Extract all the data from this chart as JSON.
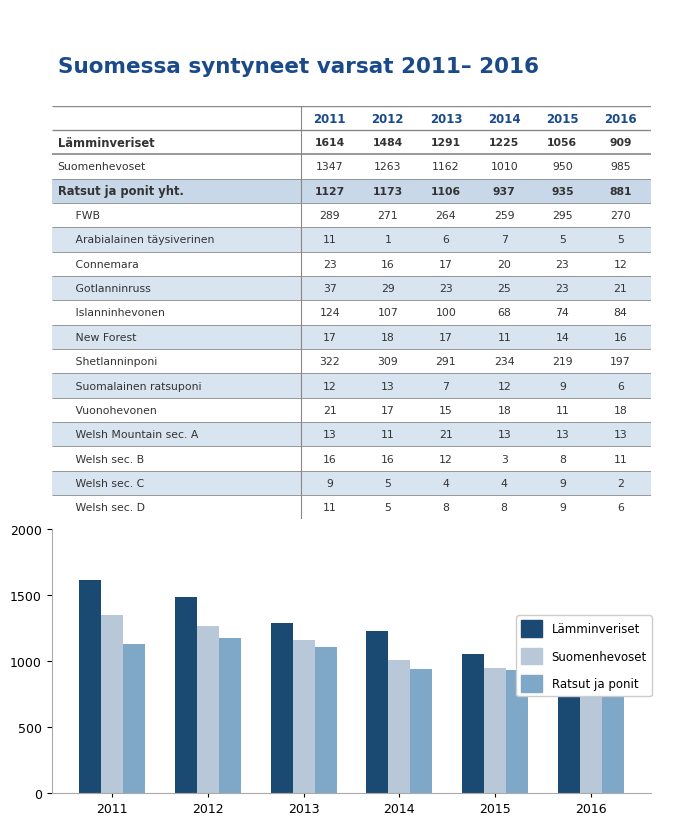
{
  "title": "Suomessa syntyneet varsat 2011– 2016",
  "years": [
    "2011",
    "2012",
    "2013",
    "2014",
    "2015",
    "2016"
  ],
  "table_rows": [
    {
      "label": "Lämminveriset",
      "values": [
        1614,
        1484,
        1291,
        1225,
        1056,
        909
      ],
      "bold": true,
      "indent": false,
      "shaded": false
    },
    {
      "label": "Suomenhevoset",
      "values": [
        1347,
        1263,
        1162,
        1010,
        950,
        985
      ],
      "bold": false,
      "indent": false,
      "shaded": false
    },
    {
      "label": "Ratsut ja ponit yht.",
      "values": [
        1127,
        1173,
        1106,
        937,
        935,
        881
      ],
      "bold": true,
      "indent": false,
      "shaded": true
    },
    {
      "label": "FWB",
      "values": [
        289,
        271,
        264,
        259,
        295,
        270
      ],
      "bold": false,
      "indent": true,
      "shaded": false
    },
    {
      "label": "Arabialainen täysiverinen",
      "values": [
        11,
        1,
        6,
        7,
        5,
        5
      ],
      "bold": false,
      "indent": true,
      "shaded": true
    },
    {
      "label": "Connemara",
      "values": [
        23,
        16,
        17,
        20,
        23,
        12
      ],
      "bold": false,
      "indent": true,
      "shaded": false
    },
    {
      "label": "Gotlanninruss",
      "values": [
        37,
        29,
        23,
        25,
        23,
        21
      ],
      "bold": false,
      "indent": true,
      "shaded": true
    },
    {
      "label": "Islanninhevonen",
      "values": [
        124,
        107,
        100,
        68,
        74,
        84
      ],
      "bold": false,
      "indent": true,
      "shaded": false
    },
    {
      "label": "New Forest",
      "values": [
        17,
        18,
        17,
        11,
        14,
        16
      ],
      "bold": false,
      "indent": true,
      "shaded": true
    },
    {
      "label": "Shetlanninponi",
      "values": [
        322,
        309,
        291,
        234,
        219,
        197
      ],
      "bold": false,
      "indent": true,
      "shaded": false
    },
    {
      "label": "Suomalainen ratsuponi",
      "values": [
        12,
        13,
        7,
        12,
        9,
        6
      ],
      "bold": false,
      "indent": true,
      "shaded": true
    },
    {
      "label": "Vuonohevonen",
      "values": [
        21,
        17,
        15,
        18,
        11,
        18
      ],
      "bold": false,
      "indent": true,
      "shaded": false
    },
    {
      "label": "Welsh Mountain sec. A",
      "values": [
        13,
        11,
        21,
        13,
        13,
        13
      ],
      "bold": false,
      "indent": true,
      "shaded": true
    },
    {
      "label": "Welsh sec. B",
      "values": [
        16,
        16,
        12,
        3,
        8,
        11
      ],
      "bold": false,
      "indent": true,
      "shaded": false
    },
    {
      "label": "Welsh sec. C",
      "values": [
        9,
        5,
        4,
        4,
        9,
        2
      ],
      "bold": false,
      "indent": true,
      "shaded": true
    },
    {
      "label": "Welsh sec. D",
      "values": [
        11,
        5,
        8,
        8,
        9,
        6
      ],
      "bold": false,
      "indent": true,
      "shaded": false
    }
  ],
  "bar_data": {
    "lamminveriset": [
      1614,
      1484,
      1291,
      1225,
      1056,
      909
    ],
    "suomenhevoset": [
      1347,
      1263,
      1162,
      1010,
      950,
      985
    ],
    "ratsut_ponit": [
      1127,
      1173,
      1106,
      937,
      935,
      881
    ]
  },
  "bar_colors": {
    "lamminveriset": "#1a4a72",
    "suomenhevoset": "#b8c8d8",
    "ratsut_ponit": "#7fa8c8"
  },
  "legend_labels": [
    "Lämminveriset",
    "Suomenhevoset",
    "Ratsut ja ponit"
  ],
  "bg_color": "#ffffff",
  "border_color": "#5b9bd5",
  "title_color": "#1a4a8a",
  "shaded_color": "#d8e4f0",
  "bold_shaded_color": "#c8d8e8",
  "text_color": "#333333",
  "header_text_color": "#1a4a8a",
  "line_color": "#888888",
  "ylim": [
    0,
    2000
  ],
  "yticks": [
    0,
    500,
    1000,
    1500,
    2000
  ]
}
